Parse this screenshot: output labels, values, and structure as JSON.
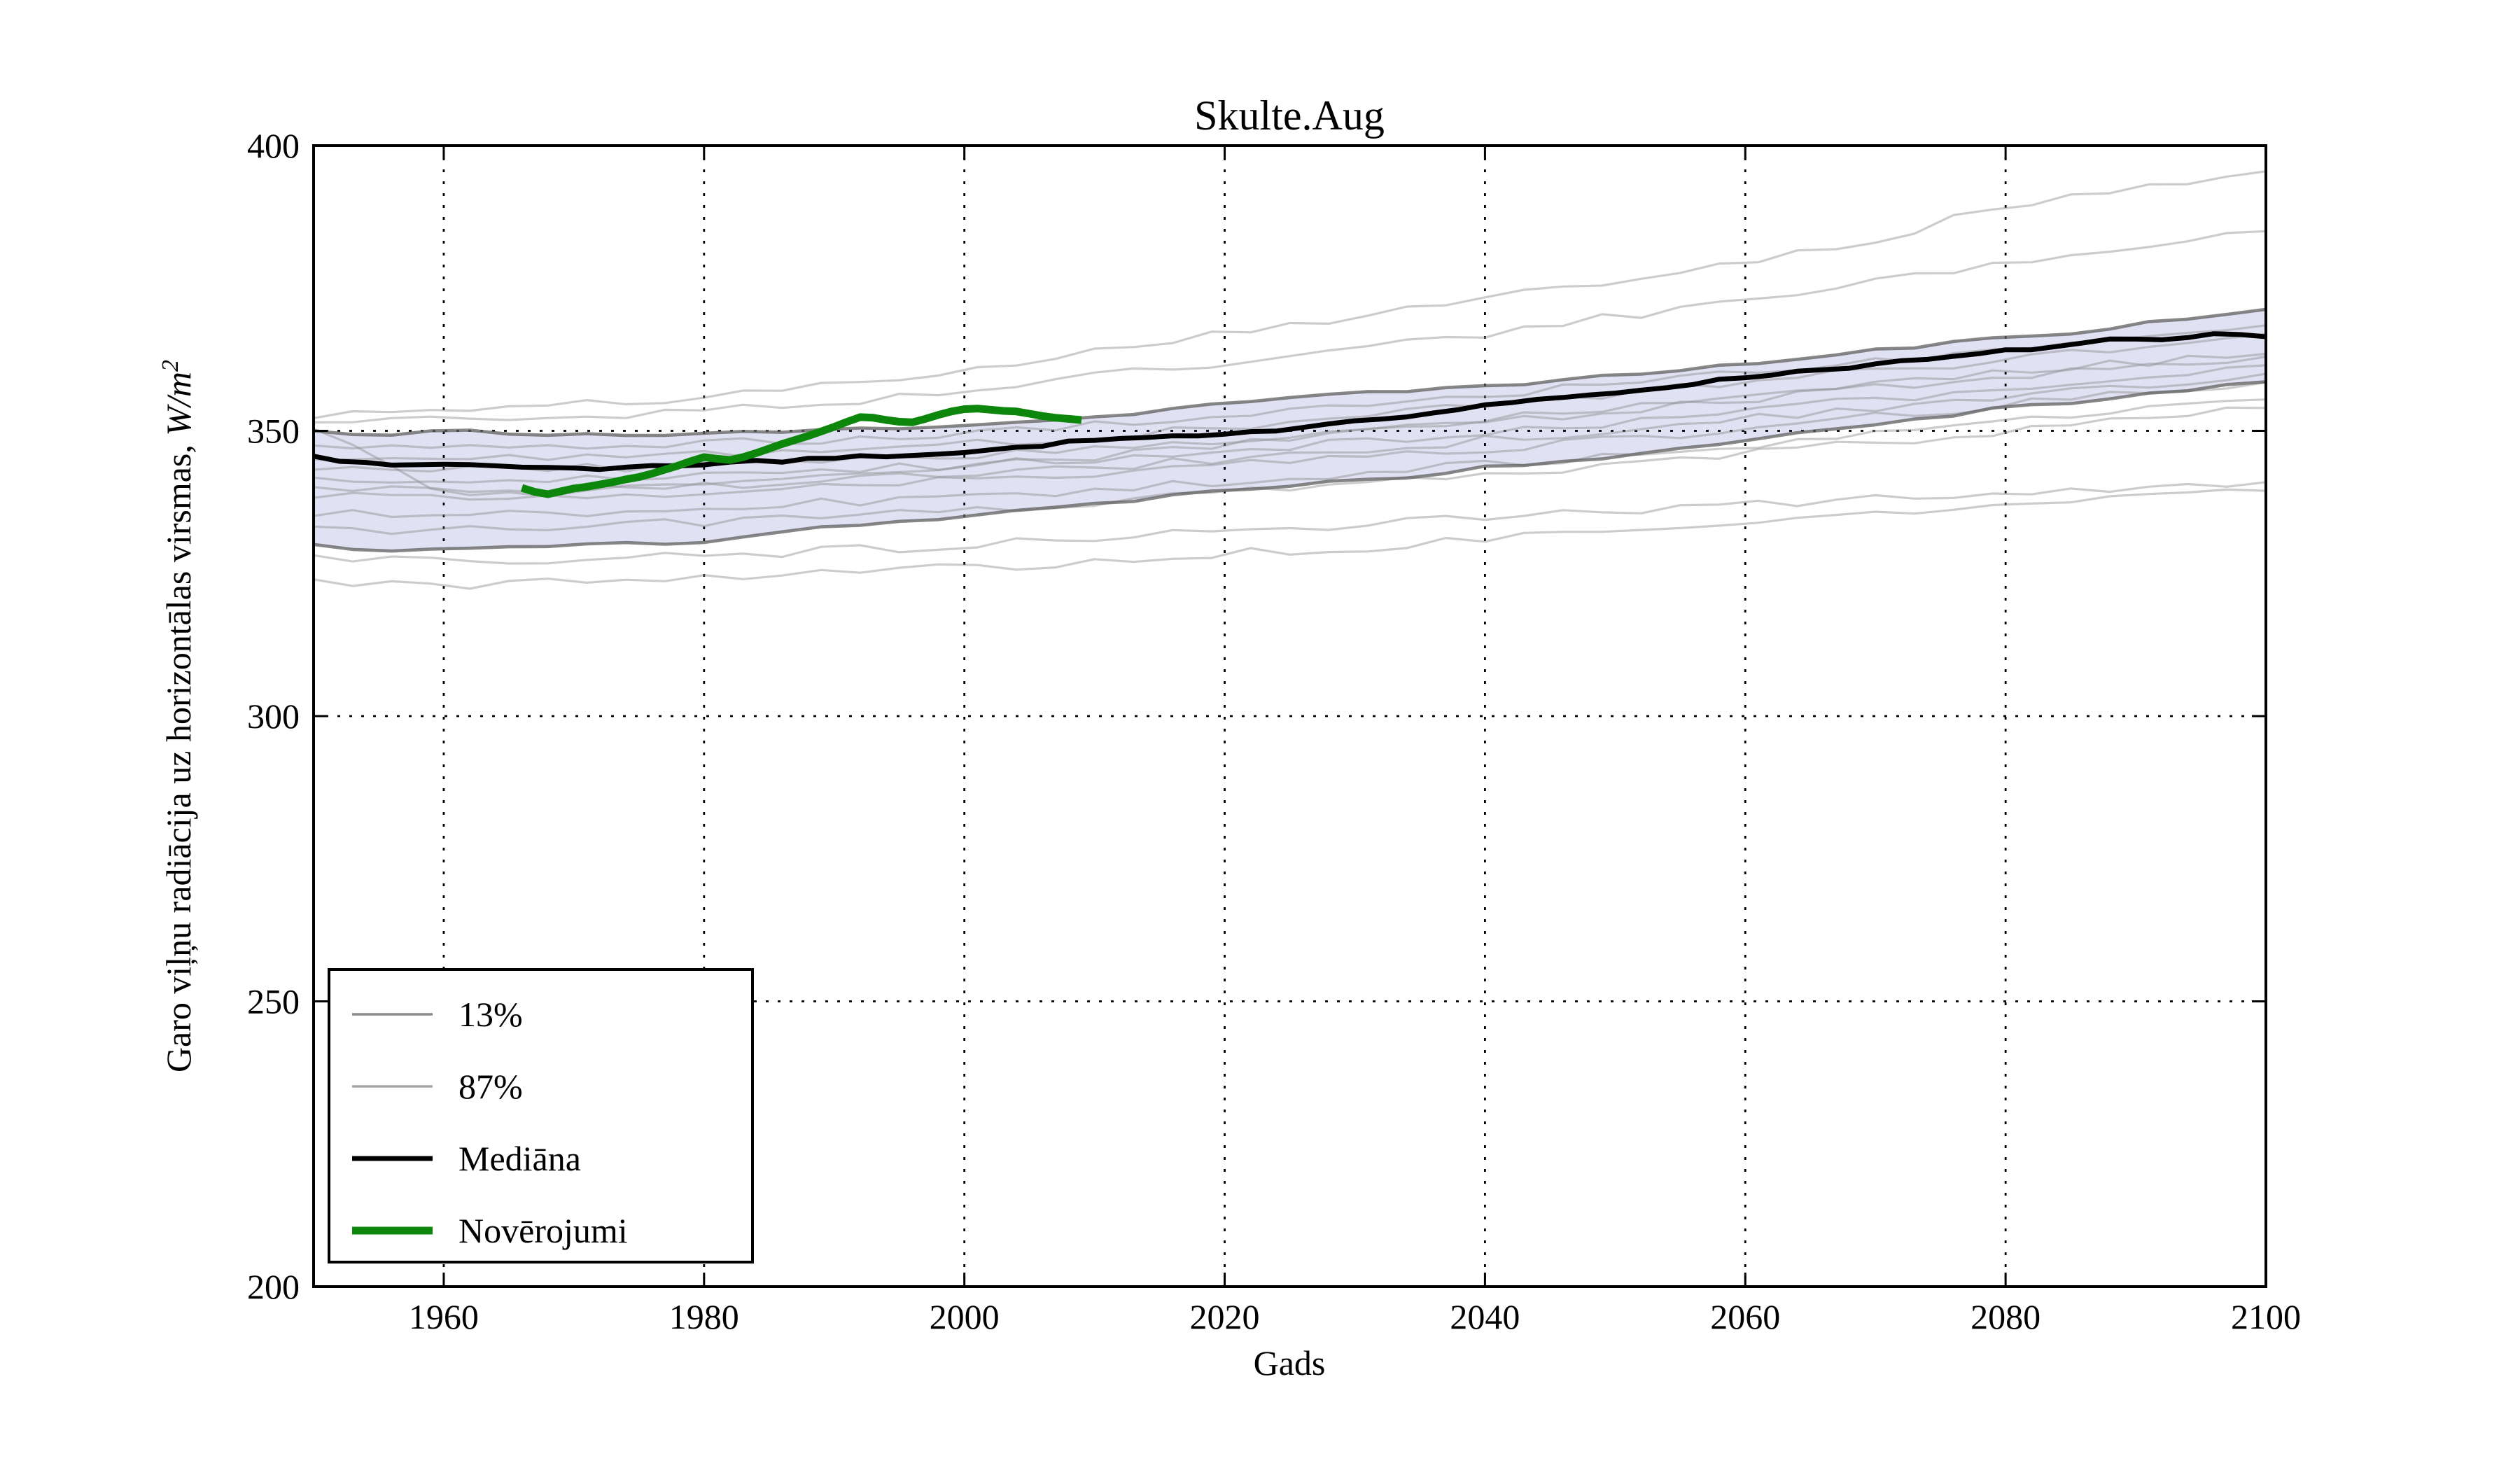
{
  "title": "Skulte.Aug",
  "axes": {
    "xlabel": "Gads",
    "ylabel_parts": {
      "prefix": "Garo viļņu radiācija uz horizontālas virsmas, ",
      "math": "W/m",
      "sup": "2"
    },
    "xlim": [
      1950,
      2100
    ],
    "ylim": [
      200,
      400
    ],
    "xticks": [
      1960,
      1980,
      2000,
      2020,
      2040,
      2060,
      2080,
      2100
    ],
    "yticks": [
      200,
      250,
      300,
      350,
      400
    ],
    "grid_style": "dotted"
  },
  "colors": {
    "median": "#000000",
    "observations": "#0c870c",
    "p13_legend": "#8a8a8a",
    "p87_legend": "#a8a8a8",
    "band_fill": "#dcdcf2",
    "band_edge": "#5f5f5f",
    "ensemble": "#8f8f8f",
    "grid": "#000000",
    "frame": "#000000"
  },
  "legend": {
    "entries": [
      {
        "label": "13%",
        "color": "#8a8a8a",
        "lw": 3.5
      },
      {
        "label": "87%",
        "color": "#a8a8a8",
        "lw": 3.5
      },
      {
        "label": "Mediāna",
        "color": "#000000",
        "lw": 7
      },
      {
        "label": "Novērojumi",
        "color": "#0c870c",
        "lw": 11
      }
    ],
    "position": "lower-left"
  },
  "chart_data": {
    "type": "line",
    "title": "Skulte.Aug",
    "xlabel": "Gads",
    "ylabel": "Garo viļņu radiācija uz horizontālas virsmas, W/m^2",
    "xlim": [
      1950,
      2100
    ],
    "ylim": [
      200,
      400
    ],
    "xticks": [
      1960,
      1980,
      2000,
      2020,
      2040,
      2060,
      2080,
      2100
    ],
    "yticks": [
      200,
      250,
      300,
      350,
      400
    ],
    "grid": "dotted",
    "legend_position": "lower-left",
    "band": {
      "upper": "87%",
      "lower": "13%",
      "fill": "#dcdcf2"
    },
    "series": [
      {
        "name": "Mediāna",
        "role": "median",
        "color": "#000000",
        "anchors": [
          [
            1950,
            345.8
          ],
          [
            1953,
            344.4
          ],
          [
            1956,
            343.9
          ],
          [
            1960,
            344.2
          ],
          [
            1964,
            344.0
          ],
          [
            1967,
            343.4
          ],
          [
            1970,
            343.6
          ],
          [
            1973,
            343.3
          ],
          [
            1976,
            343.9
          ],
          [
            1980,
            344.1
          ],
          [
            1983,
            344.9
          ],
          [
            1986,
            344.6
          ],
          [
            1990,
            345.3
          ],
          [
            1994,
            345.6
          ],
          [
            1997,
            346.0
          ],
          [
            2000,
            346.3
          ],
          [
            2004,
            347.0
          ],
          [
            2008,
            348.0
          ],
          [
            2012,
            348.6
          ],
          [
            2016,
            348.9
          ],
          [
            2020,
            349.2
          ],
          [
            2024,
            350.2
          ],
          [
            2028,
            351.3
          ],
          [
            2032,
            352.3
          ],
          [
            2036,
            353.0
          ],
          [
            2040,
            354.6
          ],
          [
            2044,
            355.3
          ],
          [
            2048,
            356.2
          ],
          [
            2052,
            357.2
          ],
          [
            2056,
            358.3
          ],
          [
            2060,
            359.4
          ],
          [
            2064,
            360.4
          ],
          [
            2068,
            361.2
          ],
          [
            2072,
            362.1
          ],
          [
            2076,
            362.9
          ],
          [
            2080,
            364.0
          ],
          [
            2084,
            364.8
          ],
          [
            2088,
            365.9
          ],
          [
            2092,
            365.8
          ],
          [
            2096,
            366.8
          ],
          [
            2100,
            366.5
          ]
        ]
      },
      {
        "name": "87%",
        "role": "band-upper",
        "color": "#5f5f5f",
        "anchors": [
          [
            1950,
            350.0
          ],
          [
            1955,
            348.9
          ],
          [
            1960,
            350.2
          ],
          [
            1965,
            349.4
          ],
          [
            1970,
            349.6
          ],
          [
            1975,
            349.0
          ],
          [
            1980,
            349.6
          ],
          [
            1985,
            349.7
          ],
          [
            1990,
            350.2
          ],
          [
            1995,
            350.6
          ],
          [
            2000,
            351.1
          ],
          [
            2005,
            351.7
          ],
          [
            2010,
            352.4
          ],
          [
            2015,
            353.6
          ],
          [
            2020,
            354.9
          ],
          [
            2025,
            355.6
          ],
          [
            2030,
            356.6
          ],
          [
            2035,
            357.1
          ],
          [
            2040,
            358.1
          ],
          [
            2045,
            358.6
          ],
          [
            2050,
            359.6
          ],
          [
            2055,
            360.8
          ],
          [
            2060,
            361.7
          ],
          [
            2065,
            362.7
          ],
          [
            2070,
            364.1
          ],
          [
            2075,
            365.2
          ],
          [
            2080,
            366.3
          ],
          [
            2085,
            367.3
          ],
          [
            2090,
            368.7
          ],
          [
            2095,
            369.8
          ],
          [
            2100,
            371.3
          ]
        ]
      },
      {
        "name": "13%",
        "role": "band-lower",
        "color": "#5f5f5f",
        "anchors": [
          [
            1950,
            330.0
          ],
          [
            1955,
            329.0
          ],
          [
            1960,
            329.6
          ],
          [
            1965,
            329.4
          ],
          [
            1970,
            330.0
          ],
          [
            1975,
            330.3
          ],
          [
            1980,
            330.7
          ],
          [
            1985,
            332.3
          ],
          [
            1990,
            333.4
          ],
          [
            1995,
            334.1
          ],
          [
            2000,
            335.0
          ],
          [
            2005,
            336.1
          ],
          [
            2010,
            337.1
          ],
          [
            2015,
            338.4
          ],
          [
            2020,
            339.8
          ],
          [
            2025,
            340.6
          ],
          [
            2030,
            341.4
          ],
          [
            2035,
            342.1
          ],
          [
            2040,
            343.6
          ],
          [
            2045,
            344.6
          ],
          [
            2050,
            345.6
          ],
          [
            2055,
            347.1
          ],
          [
            2060,
            348.4
          ],
          [
            2065,
            350.1
          ],
          [
            2070,
            351.4
          ],
          [
            2075,
            352.6
          ],
          [
            2080,
            354.1
          ],
          [
            2085,
            355.1
          ],
          [
            2090,
            356.4
          ],
          [
            2095,
            357.4
          ],
          [
            2100,
            358.6
          ]
        ]
      },
      {
        "name": "Novērojumi",
        "role": "observations",
        "color": "#0c870c",
        "anchors": [
          [
            1966,
            340.0
          ],
          [
            1967,
            339.3
          ],
          [
            1968,
            338.9
          ],
          [
            1969,
            339.4
          ],
          [
            1970,
            339.9
          ],
          [
            1971,
            340.2
          ],
          [
            1972,
            340.6
          ],
          [
            1973,
            341.0
          ],
          [
            1974,
            341.5
          ],
          [
            1975,
            341.9
          ],
          [
            1976,
            342.5
          ],
          [
            1977,
            343.2
          ],
          [
            1978,
            343.9
          ],
          [
            1979,
            344.7
          ],
          [
            1980,
            345.4
          ],
          [
            1981,
            345.1
          ],
          [
            1982,
            344.9
          ],
          [
            1983,
            345.4
          ],
          [
            1984,
            346.1
          ],
          [
            1985,
            346.9
          ],
          [
            1986,
            347.7
          ],
          [
            1987,
            348.4
          ],
          [
            1988,
            349.1
          ],
          [
            1989,
            349.9
          ],
          [
            1990,
            350.7
          ],
          [
            1991,
            351.6
          ],
          [
            1992,
            352.4
          ],
          [
            1993,
            352.3
          ],
          [
            1994,
            351.9
          ],
          [
            1995,
            351.6
          ],
          [
            1996,
            351.5
          ],
          [
            1997,
            352.1
          ],
          [
            1998,
            352.8
          ],
          [
            1999,
            353.4
          ],
          [
            2000,
            353.8
          ],
          [
            2001,
            353.9
          ],
          [
            2002,
            353.7
          ],
          [
            2003,
            353.5
          ],
          [
            2004,
            353.4
          ],
          [
            2005,
            353.0
          ],
          [
            2006,
            352.6
          ],
          [
            2007,
            352.3
          ],
          [
            2008,
            352.1
          ],
          [
            2009,
            351.9
          ]
        ]
      },
      {
        "name": "ensemble-member-1",
        "role": "ensemble",
        "decades": [
          1950,
          1960,
          1970,
          1980,
          1990,
          2000,
          2010,
          2020,
          2030,
          2040,
          2050,
          2060,
          2070,
          2080,
          2090,
          2100
        ],
        "values": [
          352.8,
          353.5,
          354.5,
          356,
          358,
          361,
          364,
          367.5,
          370,
          373,
          376.5,
          380,
          383.5,
          389.5,
          392.5,
          395.5
        ]
      },
      {
        "name": "ensemble-member-2",
        "role": "ensemble",
        "decades": [
          1950,
          1960,
          1970,
          1980,
          1990,
          2000,
          2010,
          2020,
          2030,
          2040,
          2050,
          2060,
          2070,
          2080,
          2090,
          2100
        ],
        "values": [
          351.6,
          352,
          352.5,
          353.5,
          355,
          357,
          359.5,
          362,
          364.5,
          367,
          370,
          373,
          376,
          379.5,
          382.5,
          385
        ]
      },
      {
        "name": "ensemble-member-3",
        "role": "ensemble",
        "decades": [
          1950,
          1954,
          1958,
          1962,
          1970,
          1980,
          1990,
          2000,
          2010,
          2020,
          2030,
          2040,
          2050,
          2060,
          2070,
          2080,
          2090,
          2100
        ],
        "values": [
          350.7,
          345.5,
          340.8,
          338.6,
          339.5,
          340.5,
          342,
          343.5,
          345.5,
          347.5,
          350,
          352,
          354,
          356,
          358,
          360,
          362,
          363.5
        ]
      },
      {
        "name": "ensemble-member-4",
        "role": "ensemble",
        "decades": [
          1950,
          1960,
          1970,
          1980,
          1990,
          2000,
          2010,
          2020,
          2030,
          2040,
          2050,
          2060,
          2070,
          2080,
          2090,
          2100
        ],
        "values": [
          347.1,
          347,
          347.5,
          348,
          348.5,
          349.5,
          351,
          353,
          355,
          356.5,
          358,
          360,
          362,
          364.5,
          366.5,
          368.5
        ]
      },
      {
        "name": "ensemble-member-5",
        "role": "ensemble",
        "decades": [
          1950,
          1960,
          1970,
          1980,
          1990,
          2000,
          2010,
          2020,
          2030,
          2040,
          2050,
          2060,
          2070,
          2080,
          2090,
          2100
        ],
        "values": [
          345.5,
          345,
          345.5,
          346,
          346.5,
          347.5,
          349,
          350.5,
          352.5,
          354.5,
          356.5,
          358.5,
          360.5,
          362.5,
          364.5,
          367
        ]
      },
      {
        "name": "ensemble-member-6",
        "role": "ensemble",
        "decades": [
          1950,
          1960,
          1970,
          1980,
          1990,
          2000,
          2010,
          2020,
          2030,
          2040,
          2050,
          2060,
          2070,
          2080,
          2090,
          2100
        ],
        "values": [
          343.4,
          343,
          343.5,
          344,
          344.5,
          345.5,
          346.5,
          348,
          350,
          351.5,
          353.5,
          355.5,
          357.5,
          359.5,
          361.5,
          363
        ]
      },
      {
        "name": "ensemble-member-7",
        "role": "ensemble",
        "decades": [
          1950,
          1960,
          1970,
          1980,
          1990,
          2000,
          2010,
          2020,
          2030,
          2040,
          2050,
          2060,
          2070,
          2080,
          2090,
          2100
        ],
        "values": [
          341.2,
          341,
          341.5,
          342,
          343,
          344,
          345,
          346.5,
          348,
          350,
          351.5,
          353.5,
          355.5,
          357.5,
          359.5,
          361.5
        ]
      },
      {
        "name": "ensemble-member-8",
        "role": "ensemble",
        "decades": [
          1950,
          1960,
          1970,
          1980,
          1990,
          2000,
          2010,
          2020,
          2030,
          2040,
          2050,
          2060,
          2070,
          2080,
          2090,
          2100
        ],
        "values": [
          339.8,
          339.5,
          340,
          340.5,
          341.5,
          342.5,
          343.5,
          345,
          346.5,
          348.5,
          350,
          352,
          354,
          356,
          358,
          360
        ]
      },
      {
        "name": "ensemble-member-9",
        "role": "ensemble",
        "decades": [
          1950,
          1960,
          1970,
          1980,
          1990,
          2000,
          2010,
          2020,
          2030,
          2040,
          2050,
          2060,
          2070,
          2080,
          2090,
          2100
        ],
        "values": [
          338.7,
          338,
          338.5,
          339.5,
          340.5,
          341.5,
          342.5,
          344,
          345.5,
          347,
          348.5,
          350.5,
          352.5,
          354.5,
          356.5,
          358.5
        ]
      },
      {
        "name": "ensemble-member-10",
        "role": "ensemble",
        "decades": [
          1950,
          1960,
          1970,
          1980,
          1990,
          2000,
          2010,
          2020,
          2030,
          2040,
          2050,
          2060,
          2070,
          2080,
          2090,
          2100
        ],
        "values": [
          335.5,
          335,
          335.5,
          336.5,
          337.5,
          338.5,
          339.5,
          341,
          342.5,
          344,
          345.5,
          347.5,
          349.5,
          351.5,
          353.5,
          355.5
        ]
      },
      {
        "name": "ensemble-member-11",
        "role": "ensemble",
        "decades": [
          1950,
          1960,
          1970,
          1980,
          1990,
          2000,
          2010,
          2020,
          2030,
          2040,
          2050,
          2060,
          2070,
          2080,
          2090,
          2100
        ],
        "values": [
          333,
          332.5,
          333,
          334,
          335,
          336,
          337.5,
          339,
          340.5,
          342.5,
          344,
          346,
          348,
          350,
          352,
          354
        ]
      },
      {
        "name": "ensemble-member-12",
        "role": "ensemble",
        "decades": [
          1950,
          1960,
          1970,
          1980,
          1990,
          2000,
          2010,
          2020,
          2030,
          2040,
          2050,
          2060,
          2070,
          2080,
          2090,
          2100
        ],
        "values": [
          327.5,
          327,
          327.5,
          328,
          329,
          330,
          331,
          332.5,
          333.5,
          335,
          336,
          337,
          338,
          339,
          340,
          341
        ]
      },
      {
        "name": "ensemble-member-13",
        "role": "ensemble",
        "decades": [
          1950,
          1960,
          1970,
          1980,
          1990,
          2000,
          2010,
          2020,
          2030,
          2040,
          2050,
          2060,
          2070,
          2080,
          2090,
          2100
        ],
        "values": [
          323.5,
          323,
          323.5,
          324,
          325,
          326,
          327,
          328.5,
          329.5,
          331,
          332.5,
          334,
          335.5,
          337,
          338.5,
          339.5
        ]
      }
    ]
  }
}
